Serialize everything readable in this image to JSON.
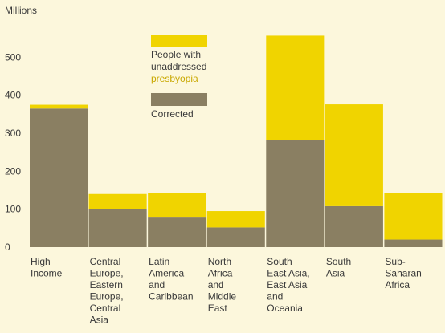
{
  "chart_data": {
    "type": "bar",
    "stacked": true,
    "y_unit_label": "Millions",
    "ylim": [
      0,
      560
    ],
    "yticks": [
      0,
      100,
      200,
      300,
      400,
      500
    ],
    "grid": false,
    "legend_placement": "top-center",
    "categories": [
      [
        "High",
        "Income"
      ],
      [
        "Central",
        "Europe,",
        "Eastern",
        "Europe,",
        "Central",
        "Asia"
      ],
      [
        "Latin",
        "America",
        "and",
        "Caribbean"
      ],
      [
        "North",
        "Africa",
        "and",
        "Middle",
        "East"
      ],
      [
        "South",
        "East Asia,",
        "East Asia",
        "and",
        "Oceania"
      ],
      [
        "South",
        "Asia"
      ],
      [
        "Sub-",
        "Saharan",
        "Africa"
      ]
    ],
    "series": [
      {
        "name": "Corrected",
        "color": "#8a7f62",
        "values": [
          365,
          100,
          78,
          52,
          282,
          108,
          20
        ]
      },
      {
        "name_lines": [
          "People with",
          "unaddressed"
        ],
        "name_accent": "presbyopia",
        "color": "#f0d400",
        "values": [
          10,
          40,
          65,
          43,
          275,
          268,
          122
        ]
      }
    ]
  }
}
